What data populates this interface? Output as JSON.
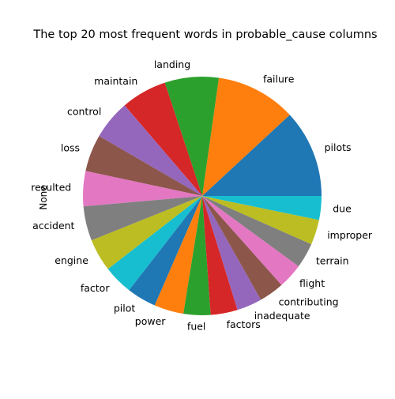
{
  "chart_data": {
    "type": "pie",
    "title": "The top 20 most frequent words in probable_cause columns",
    "ylabel": "None",
    "start_angle_deg": 0,
    "direction": "counterclockwise",
    "categories": [
      "pilots",
      "failure",
      "landing",
      "maintain",
      "control",
      "loss",
      "resulted",
      "accident",
      "engine",
      "factor",
      "pilot",
      "power",
      "fuel",
      "factors",
      "inadequate",
      "contributing",
      "flight",
      "terrain",
      "improper",
      "due"
    ],
    "values": [
      1400,
      1280,
      860,
      730,
      630,
      590,
      560,
      550,
      520,
      470,
      470,
      470,
      430,
      430,
      400,
      400,
      400,
      400,
      400,
      380
    ],
    "colors": [
      "#1f77b4",
      "#ff7f0e",
      "#2ca02c",
      "#d62728",
      "#9467bd",
      "#8c564b",
      "#e377c2",
      "#7f7f7f",
      "#bcbd22",
      "#17becf",
      "#1f77b4",
      "#ff7f0e",
      "#2ca02c",
      "#d62728",
      "#9467bd",
      "#8c564b",
      "#e377c2",
      "#7f7f7f",
      "#bcbd22",
      "#17becf"
    ]
  }
}
